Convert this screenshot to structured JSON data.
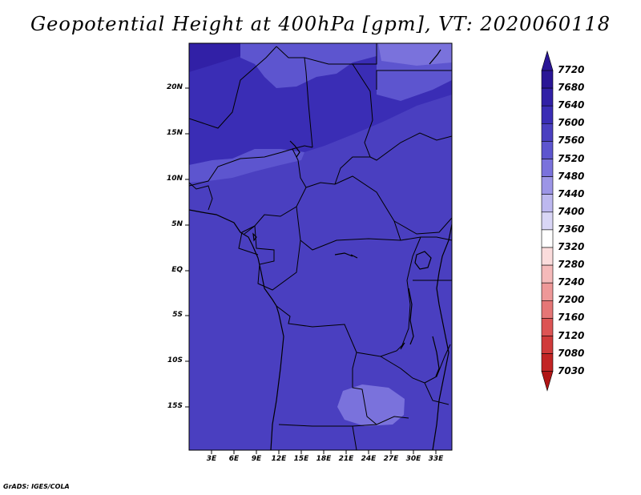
{
  "title": "Geopotential Height at 400hPa [gpm], VT: 2020060118",
  "credit": "GrADS: IGES/COLA",
  "map": {
    "type": "filled contour map",
    "lat_ticks": [
      "20N",
      "15N",
      "10N",
      "5N",
      "EQ",
      "5S",
      "10S",
      "15S"
    ],
    "lon_ticks": [
      "3E",
      "6E",
      "9E",
      "12E",
      "15E",
      "18E",
      "21E",
      "24E",
      "27E",
      "30E",
      "33E"
    ],
    "background_level_color": "#4a3fc0"
  },
  "colorbar": {
    "levels": [
      "7720",
      "7680",
      "7640",
      "7600",
      "7560",
      "7520",
      "7480",
      "7440",
      "7400",
      "7360",
      "7320",
      "7280",
      "7240",
      "7200",
      "7160",
      "7120",
      "7080",
      "7030"
    ],
    "colors": [
      "#2a1696",
      "#3120a6",
      "#3a2db5",
      "#4a3fc0",
      "#5d55cf",
      "#7a72dc",
      "#9c95e6",
      "#bdb8ef",
      "#d9d6f6",
      "#ffffff",
      "#fbdcdc",
      "#f5baba",
      "#ee9898",
      "#e57676",
      "#dc5454",
      "#d03a3a",
      "#c22424",
      "#b01515"
    ]
  }
}
